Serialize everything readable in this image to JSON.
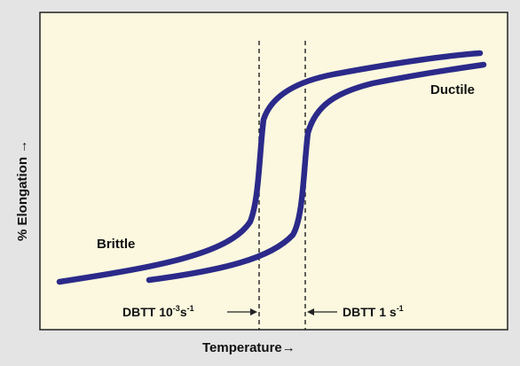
{
  "diagram": {
    "background_color": "#e4e4e4",
    "panel_color": "#fbf8df",
    "curve_color": "#2b2a8a",
    "x_axis_label": "Temperature",
    "x_axis_arrow": "→",
    "y_axis_label": "% Elongation",
    "y_axis_arrow": "→",
    "region_labels": {
      "brittle": "Brittle",
      "ductile": "Ductile"
    },
    "dbtt_low": {
      "prefix": "DBTT 10",
      "exp1": "-3",
      "mid": "s",
      "exp2": "-1",
      "arrow_icon": "right-arrow"
    },
    "dbtt_high": {
      "prefix": "DBTT 1 s",
      "exp": "-1",
      "arrow_icon": "left-arrow"
    }
  }
}
